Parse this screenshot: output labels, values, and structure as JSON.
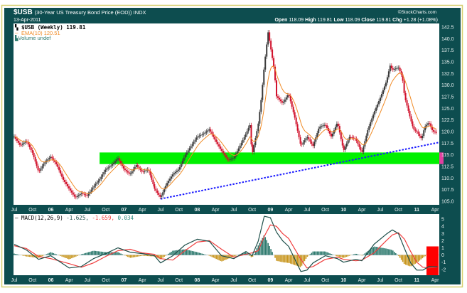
{
  "header": {
    "symbol": "$USB",
    "description": "(30-Year US Treasury Bond Price (EOD)) INDX",
    "date": "13-Apr-2011",
    "watermark": "©StockCharts.com",
    "ohlc": {
      "open_label": "Open",
      "open": "118.09",
      "high_label": "High",
      "high": "119.81",
      "low_label": "Low",
      "low": "118.09",
      "close_label": "Close",
      "close": "119.81",
      "chg_label": "Chg",
      "chg": "+1.28 (+1.08%)"
    }
  },
  "colors": {
    "frame": "#0d4d4f",
    "border": "#d6cf6e",
    "up_candle": "#3a3a3a",
    "down_candle": "#d0102a",
    "ema": "#f08a24",
    "support_band": "#00f000",
    "trendline": "#1a1aff",
    "macd_line": "#1e4f4a",
    "signal_line": "#f04040",
    "hist_pos": "#2e7a6e",
    "hist_neg": "#c8961e"
  },
  "chart_data": [
    {
      "type": "candlestick",
      "legend": {
        "price": "$USB (Weekly) 119.81",
        "ema": "EMA(10) 120.51",
        "volume": "Volume undef"
      },
      "x_tick_labels": [
        "Jul",
        "Oct",
        "06",
        "Apr",
        "Jul",
        "Oct",
        "07",
        "Apr",
        "Jul",
        "Oct",
        "08",
        "Apr",
        "Jul",
        "Oct",
        "09",
        "Apr",
        "Jul",
        "Oct",
        "10",
        "Apr",
        "Jul",
        "Oct",
        "11",
        "Apr"
      ],
      "y_tick_labels": [
        "142.5",
        "140.0",
        "137.5",
        "135.0",
        "132.5",
        "130.0",
        "127.5",
        "125.0",
        "122.5",
        "120.0",
        "117.5",
        "115.0",
        "112.5",
        "110.0",
        "107.5",
        "105.0"
      ],
      "ylim": [
        104.2,
        143.3
      ],
      "grid": false,
      "y_axis": "right",
      "support_band": {
        "low": 113.0,
        "high": 115.5,
        "from": "2006-09-01"
      },
      "trendline": {
        "from": {
          "x": "2007-07-01",
          "y": 105.5
        },
        "to": {
          "x": "2011-04-13",
          "y": 117.6
        }
      },
      "closes": [
        {
          "x": "2005-07-01",
          "y": 118.9
        },
        {
          "x": "2005-08-01",
          "y": 117.0
        },
        {
          "x": "2005-09-01",
          "y": 118.0
        },
        {
          "x": "2005-10-01",
          "y": 115.4
        },
        {
          "x": "2005-11-01",
          "y": 111.3
        },
        {
          "x": "2005-12-01",
          "y": 113.4
        },
        {
          "x": "2006-01-01",
          "y": 114.6
        },
        {
          "x": "2006-02-01",
          "y": 112.8
        },
        {
          "x": "2006-03-01",
          "y": 109.7
        },
        {
          "x": "2006-04-01",
          "y": 107.7
        },
        {
          "x": "2006-05-01",
          "y": 105.8
        },
        {
          "x": "2006-06-01",
          "y": 106.7
        },
        {
          "x": "2006-07-01",
          "y": 106.2
        },
        {
          "x": "2006-08-01",
          "y": 108.2
        },
        {
          "x": "2006-09-01",
          "y": 109.7
        },
        {
          "x": "2006-10-01",
          "y": 111.9
        },
        {
          "x": "2006-11-01",
          "y": 112.8
        },
        {
          "x": "2006-12-01",
          "y": 114.3
        },
        {
          "x": "2007-01-01",
          "y": 111.9
        },
        {
          "x": "2007-02-01",
          "y": 110.8
        },
        {
          "x": "2007-03-01",
          "y": 112.8
        },
        {
          "x": "2007-04-01",
          "y": 111.3
        },
        {
          "x": "2007-05-01",
          "y": 111.9
        },
        {
          "x": "2007-06-01",
          "y": 107.7
        },
        {
          "x": "2007-07-01",
          "y": 105.8
        },
        {
          "x": "2007-08-01",
          "y": 108.8
        },
        {
          "x": "2007-09-01",
          "y": 110.8
        },
        {
          "x": "2007-10-01",
          "y": 111.9
        },
        {
          "x": "2007-11-01",
          "y": 114.9
        },
        {
          "x": "2007-12-01",
          "y": 116.9
        },
        {
          "x": "2008-01-01",
          "y": 118.9
        },
        {
          "x": "2008-02-01",
          "y": 119.5
        },
        {
          "x": "2008-03-01",
          "y": 120.5
        },
        {
          "x": "2008-04-01",
          "y": 118.0
        },
        {
          "x": "2008-05-01",
          "y": 115.9
        },
        {
          "x": "2008-06-01",
          "y": 113.9
        },
        {
          "x": "2008-07-01",
          "y": 114.3
        },
        {
          "x": "2008-08-01",
          "y": 116.9
        },
        {
          "x": "2008-09-01",
          "y": 119.5
        },
        {
          "x": "2008-09-20",
          "y": 121.5
        },
        {
          "x": "2008-10-01",
          "y": 114.9
        },
        {
          "x": "2008-11-01",
          "y": 121.5
        },
        {
          "x": "2008-11-15",
          "y": 126.6
        },
        {
          "x": "2008-12-01",
          "y": 134.2
        },
        {
          "x": "2008-12-20",
          "y": 141.4
        },
        {
          "x": "2009-01-01",
          "y": 138.4
        },
        {
          "x": "2009-01-20",
          "y": 133.3
        },
        {
          "x": "2009-02-01",
          "y": 127.6
        },
        {
          "x": "2009-03-01",
          "y": 126.1
        },
        {
          "x": "2009-04-01",
          "y": 128.1
        },
        {
          "x": "2009-05-01",
          "y": 123.0
        },
        {
          "x": "2009-06-01",
          "y": 116.9
        },
        {
          "x": "2009-07-01",
          "y": 118.9
        },
        {
          "x": "2009-08-01",
          "y": 116.9
        },
        {
          "x": "2009-09-01",
          "y": 121.0
        },
        {
          "x": "2009-10-01",
          "y": 121.5
        },
        {
          "x": "2009-11-01",
          "y": 118.9
        },
        {
          "x": "2009-12-01",
          "y": 122.0
        },
        {
          "x": "2010-01-01",
          "y": 115.9
        },
        {
          "x": "2010-02-01",
          "y": 118.9
        },
        {
          "x": "2010-03-01",
          "y": 118.4
        },
        {
          "x": "2010-04-01",
          "y": 115.4
        },
        {
          "x": "2010-05-01",
          "y": 120.5
        },
        {
          "x": "2010-06-01",
          "y": 124.1
        },
        {
          "x": "2010-07-01",
          "y": 127.2
        },
        {
          "x": "2010-08-01",
          "y": 130.7
        },
        {
          "x": "2010-08-20",
          "y": 134.2
        },
        {
          "x": "2010-09-01",
          "y": 133.3
        },
        {
          "x": "2010-10-01",
          "y": 133.8
        },
        {
          "x": "2010-10-20",
          "y": 131.8
        },
        {
          "x": "2010-11-01",
          "y": 127.6
        },
        {
          "x": "2010-12-01",
          "y": 122.6
        },
        {
          "x": "2010-12-15",
          "y": 120.5
        },
        {
          "x": "2011-01-01",
          "y": 120.0
        },
        {
          "x": "2011-01-25",
          "y": 118.4
        },
        {
          "x": "2011-02-10",
          "y": 121.0
        },
        {
          "x": "2011-03-01",
          "y": 122.0
        },
        {
          "x": "2011-03-20",
          "y": 120.0
        },
        {
          "x": "2011-04-13",
          "y": 119.81
        }
      ]
    },
    {
      "type": "line",
      "legend": {
        "name": "MACD(12,26,9)",
        "macd": "-1.625,",
        "signal": "-1.659,",
        "hist": "0.034"
      },
      "y_tick_labels": [
        "5",
        "4",
        "3",
        "2",
        "1",
        "0",
        "-1",
        "-2"
      ],
      "ylim": [
        -2.8,
        5.7
      ],
      "x_tick_labels": [
        "Jul",
        "Oct",
        "06",
        "Apr",
        "Jul",
        "Oct",
        "07",
        "Apr",
        "Jul",
        "Oct",
        "08",
        "Apr",
        "Jul",
        "Oct",
        "09",
        "Apr",
        "Jul",
        "Oct",
        "10",
        "Apr",
        "Jul",
        "Oct",
        "11",
        "Apr"
      ],
      "series": [
        {
          "key": "macd",
          "values": [
            {
              "x": "2005-07-01",
              "y": 1.5
            },
            {
              "x": "2005-09-01",
              "y": 0.7
            },
            {
              "x": "2005-11-01",
              "y": -0.6
            },
            {
              "x": "2006-01-01",
              "y": -0.1
            },
            {
              "x": "2006-04-01",
              "y": -1.8
            },
            {
              "x": "2006-06-01",
              "y": -1.6
            },
            {
              "x": "2006-08-01",
              "y": -0.5
            },
            {
              "x": "2006-10-01",
              "y": 0.2
            },
            {
              "x": "2006-12-01",
              "y": 1.0
            },
            {
              "x": "2007-02-01",
              "y": 0.4
            },
            {
              "x": "2007-04-01",
              "y": 0.2
            },
            {
              "x": "2007-06-01",
              "y": -0.1
            },
            {
              "x": "2007-07-01",
              "y": -1.1
            },
            {
              "x": "2007-09-01",
              "y": -0.1
            },
            {
              "x": "2007-11-01",
              "y": 1.4
            },
            {
              "x": "2008-01-01",
              "y": 2.2
            },
            {
              "x": "2008-03-01",
              "y": 1.9
            },
            {
              "x": "2008-05-01",
              "y": -0.1
            },
            {
              "x": "2008-07-01",
              "y": -0.5
            },
            {
              "x": "2008-09-01",
              "y": 0.5
            },
            {
              "x": "2008-10-01",
              "y": -0.1
            },
            {
              "x": "2008-11-01",
              "y": 1.9
            },
            {
              "x": "2008-12-01",
              "y": 5.4
            },
            {
              "x": "2009-01-01",
              "y": 5.2
            },
            {
              "x": "2009-02-01",
              "y": 3.2
            },
            {
              "x": "2009-03-01",
              "y": 2.0
            },
            {
              "x": "2009-04-01",
              "y": 1.2
            },
            {
              "x": "2009-06-01",
              "y": -2.3
            },
            {
              "x": "2009-07-01",
              "y": -2.1
            },
            {
              "x": "2009-08-01",
              "y": -1.1
            },
            {
              "x": "2009-10-01",
              "y": -0.1
            },
            {
              "x": "2009-12-01",
              "y": -0.5
            },
            {
              "x": "2010-01-01",
              "y": -1.0
            },
            {
              "x": "2010-03-01",
              "y": -0.6
            },
            {
              "x": "2010-04-01",
              "y": -0.8
            },
            {
              "x": "2010-06-01",
              "y": 1.5
            },
            {
              "x": "2010-08-01",
              "y": 2.9
            },
            {
              "x": "2010-09-01",
              "y": 3.5
            },
            {
              "x": "2010-10-01",
              "y": 3.0
            },
            {
              "x": "2010-11-01",
              "y": 0.9
            },
            {
              "x": "2010-12-01",
              "y": -1.1
            },
            {
              "x": "2011-01-01",
              "y": -2.1
            },
            {
              "x": "2011-02-01",
              "y": -2.1
            },
            {
              "x": "2011-03-01",
              "y": -1.6
            },
            {
              "x": "2011-04-13",
              "y": -1.625
            }
          ]
        },
        {
          "key": "signal",
          "values": [
            {
              "x": "2005-07-01",
              "y": 1.3
            },
            {
              "x": "2005-09-01",
              "y": 0.9
            },
            {
              "x": "2005-11-01",
              "y": -0.2
            },
            {
              "x": "2006-01-01",
              "y": -0.5
            },
            {
              "x": "2006-04-01",
              "y": -1.2
            },
            {
              "x": "2006-06-01",
              "y": -1.7
            },
            {
              "x": "2006-08-01",
              "y": -1.1
            },
            {
              "x": "2006-10-01",
              "y": -0.2
            },
            {
              "x": "2006-12-01",
              "y": 0.6
            },
            {
              "x": "2007-02-01",
              "y": 0.8
            },
            {
              "x": "2007-04-01",
              "y": 0.3
            },
            {
              "x": "2007-06-01",
              "y": 0.1
            },
            {
              "x": "2007-07-01",
              "y": -0.5
            },
            {
              "x": "2007-09-01",
              "y": -0.7
            },
            {
              "x": "2007-11-01",
              "y": 0.6
            },
            {
              "x": "2008-01-01",
              "y": 1.8
            },
            {
              "x": "2008-03-01",
              "y": 2.0
            },
            {
              "x": "2008-05-01",
              "y": 0.8
            },
            {
              "x": "2008-07-01",
              "y": -0.3
            },
            {
              "x": "2008-09-01",
              "y": 0.1
            },
            {
              "x": "2008-10-01",
              "y": 0.3
            },
            {
              "x": "2008-11-01",
              "y": 0.6
            },
            {
              "x": "2008-12-01",
              "y": 2.6
            },
            {
              "x": "2009-01-01",
              "y": 4.2
            },
            {
              "x": "2009-02-01",
              "y": 4.0
            },
            {
              "x": "2009-03-01",
              "y": 3.0
            },
            {
              "x": "2009-04-01",
              "y": 2.3
            },
            {
              "x": "2009-06-01",
              "y": -0.6
            },
            {
              "x": "2009-07-01",
              "y": -1.8
            },
            {
              "x": "2009-08-01",
              "y": -1.6
            },
            {
              "x": "2009-10-01",
              "y": -0.6
            },
            {
              "x": "2009-12-01",
              "y": -0.3
            },
            {
              "x": "2010-01-01",
              "y": -0.6
            },
            {
              "x": "2010-03-01",
              "y": -0.8
            },
            {
              "x": "2010-04-01",
              "y": -0.7
            },
            {
              "x": "2010-06-01",
              "y": 0.3
            },
            {
              "x": "2010-08-01",
              "y": 2.0
            },
            {
              "x": "2010-09-01",
              "y": 2.8
            },
            {
              "x": "2010-10-01",
              "y": 3.1
            },
            {
              "x": "2010-11-01",
              "y": 2.2
            },
            {
              "x": "2010-12-01",
              "y": 0.5
            },
            {
              "x": "2011-01-01",
              "y": -1.0
            },
            {
              "x": "2011-02-01",
              "y": -1.7
            },
            {
              "x": "2011-03-01",
              "y": -1.8
            },
            {
              "x": "2011-04-13",
              "y": -1.659
            }
          ]
        }
      ]
    }
  ]
}
